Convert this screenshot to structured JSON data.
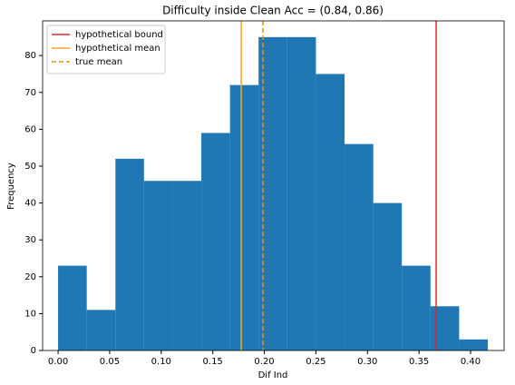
{
  "chart_data": {
    "type": "histogram",
    "title": "Difficulty inside Clean Acc = (0.84, 0.86)",
    "x_label": "Dif Ind",
    "y_label": "Frequency",
    "color": "#1f77b4",
    "bins": [
      0,
      0.0278,
      0.0556,
      0.0833,
      0.1111,
      0.1389,
      0.1667,
      0.1944,
      0.2222,
      0.25,
      0.2778,
      0.3056,
      0.3333,
      0.3611,
      0.3889,
      0.4167
    ],
    "values": [
      23,
      11,
      52,
      46,
      46,
      59,
      72,
      85,
      85,
      75,
      56,
      40,
      23,
      12,
      3
    ],
    "xlim": [
      -0.015,
      0.4325
    ],
    "ylim": [
      0,
      89.4
    ],
    "xticks": [
      {
        "value": 0,
        "label": "0.00"
      },
      {
        "value": 0.05,
        "label": "0.05"
      },
      {
        "value": 0.1,
        "label": "0.10"
      },
      {
        "value": 0.15,
        "label": "0.15"
      },
      {
        "value": 0.2,
        "label": "0.20"
      },
      {
        "value": 0.25,
        "label": "0.25"
      },
      {
        "value": 0.3,
        "label": "0.30"
      },
      {
        "value": 0.35,
        "label": "0.35"
      },
      {
        "value": 0.4,
        "label": "0.40"
      }
    ],
    "yticks": [
      0,
      10,
      20,
      30,
      40,
      50,
      60,
      70,
      80
    ],
    "legend": "upper left",
    "vlines": [
      {
        "name": "hypothetical bound",
        "color": "#e8262a",
        "value": 0.3666,
        "style": "solid"
      },
      {
        "name": "hypothetical mean",
        "color": "#f5a623",
        "value": 0.1776,
        "style": "solid"
      },
      {
        "name": "true mean",
        "color": "#f28e1c",
        "value": 0.1987,
        "style": "dashed"
      }
    ]
  }
}
